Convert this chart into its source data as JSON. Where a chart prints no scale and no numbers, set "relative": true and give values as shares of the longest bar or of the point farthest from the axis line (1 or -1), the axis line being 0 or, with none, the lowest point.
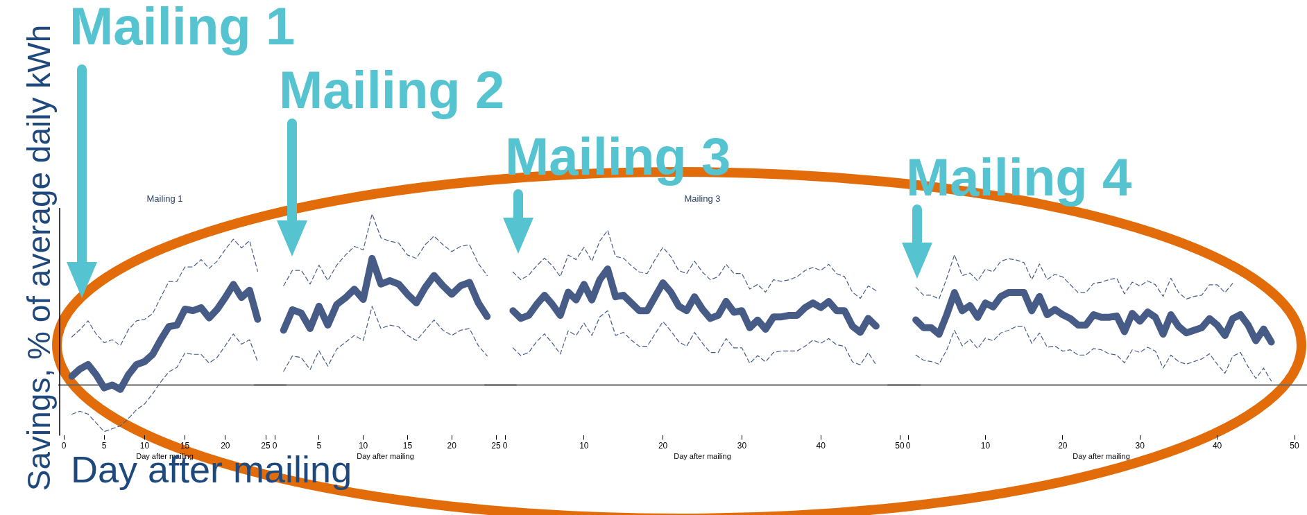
{
  "chart_data": [
    {
      "type": "line",
      "title": "Mailing 1",
      "xlabel": "Day after mailing",
      "ylabel": "Savings, % of average daily kWh",
      "annotations": [
        "Mailing 1",
        "Day after mailing"
      ],
      "relative": true,
      "xlim": [
        0,
        25
      ],
      "xticks": [
        0,
        5,
        10,
        15,
        20,
        25
      ],
      "tick_labels": "x",
      "marker": "none",
      "legend": false,
      "grid": false,
      "x": [
        1,
        2,
        3,
        4,
        5,
        6,
        7,
        8,
        9,
        10,
        11,
        12,
        13,
        14,
        15,
        16,
        17,
        18,
        19,
        20,
        21,
        22,
        23,
        24
      ],
      "series": [
        {
          "color": "#465c87",
          "line_style": "solid",
          "values": [
            0.06,
            0.11,
            0.14,
            0.07,
            -0.02,
            0,
            -0.03,
            0.07,
            0.14,
            0.16,
            0.21,
            0.31,
            0.4,
            0.41,
            0.52,
            0.51,
            0.53,
            0.46,
            0.52,
            0.6,
            0.69,
            0.6,
            0.65,
            0.45
          ]
        },
        {
          "color": "#465c87",
          "line_style": "dashed",
          "values": [
            0.33,
            0.38,
            0.44,
            0.35,
            0.29,
            0.31,
            0.27,
            0.38,
            0.44,
            0.45,
            0.49,
            0.6,
            0.71,
            0.71,
            0.81,
            0.81,
            0.86,
            0.8,
            0.85,
            0.93,
            1,
            0.94,
            0.99,
            0.78
          ]
        },
        {
          "color": "#465c87",
          "line_style": "dashed",
          "values": [
            -0.2,
            -0.18,
            -0.2,
            -0.26,
            -0.32,
            -0.3,
            -0.28,
            -0.23,
            -0.17,
            -0.13,
            -0.06,
            0.02,
            0.09,
            0.12,
            0.22,
            0.21,
            0.21,
            0.15,
            0.19,
            0.27,
            0.35,
            0.28,
            0.31,
            0.16
          ]
        }
      ]
    },
    {
      "type": "line",
      "xlabel": "Day after mailing",
      "annotations": [
        "Mailing 2"
      ],
      "relative": true,
      "xlim": [
        0,
        25
      ],
      "xticks": [
        0,
        5,
        10,
        15,
        20,
        25
      ],
      "tick_labels": "x",
      "marker": "none",
      "legend": false,
      "grid": false,
      "x": [
        1,
        2,
        3,
        4,
        5,
        6,
        7,
        8,
        9,
        10,
        11,
        12,
        13,
        14,
        15,
        16,
        17,
        18,
        19,
        20,
        21,
        22,
        23,
        24
      ],
      "series": [
        {
          "color": "#465c87",
          "line_style": "solid",
          "values": [
            0.32,
            0.44,
            0.42,
            0.33,
            0.46,
            0.35,
            0.47,
            0.51,
            0.56,
            0.5,
            0.74,
            0.59,
            0.61,
            0.59,
            0.53,
            0.48,
            0.57,
            0.64,
            0.58,
            0.53,
            0.58,
            0.6,
            0.48,
            0.4
          ]
        },
        {
          "color": "#465c87",
          "line_style": "dashed",
          "values": [
            0.58,
            0.67,
            0.67,
            0.59,
            0.7,
            0.61,
            0.7,
            0.76,
            0.81,
            0.79,
            1,
            0.86,
            0.84,
            0.83,
            0.76,
            0.74,
            0.82,
            0.87,
            0.82,
            0.78,
            0.81,
            0.82,
            0.71,
            0.64
          ]
        },
        {
          "color": "#465c87",
          "line_style": "dashed",
          "values": [
            0.08,
            0.17,
            0.16,
            0.09,
            0.2,
            0.11,
            0.21,
            0.25,
            0.29,
            0.26,
            0.46,
            0.33,
            0.35,
            0.34,
            0.29,
            0.26,
            0.32,
            0.38,
            0.32,
            0.29,
            0.32,
            0.33,
            0.23,
            0.17
          ]
        }
      ]
    },
    {
      "type": "line",
      "title": "Mailing 3",
      "xlabel": "Day after mailing",
      "annotations": [
        "Mailing 3"
      ],
      "relative": true,
      "xlim": [
        0,
        50
      ],
      "xticks": [
        0,
        10,
        20,
        30,
        40,
        50
      ],
      "tick_labels": "x",
      "marker": "none",
      "legend": false,
      "grid": false,
      "x": [
        1,
        2,
        3,
        4,
        5,
        6,
        7,
        8,
        9,
        10,
        11,
        12,
        13,
        14,
        15,
        16,
        17,
        18,
        19,
        20,
        21,
        22,
        23,
        24,
        25,
        26,
        27,
        28,
        29,
        30,
        31,
        32,
        33,
        34,
        35,
        36,
        37,
        38,
        39,
        40,
        41,
        42,
        43,
        44,
        45,
        46,
        47
      ],
      "series": [
        {
          "color": "#465c87",
          "line_style": "solid",
          "values": [
            0.48,
            0.43,
            0.45,
            0.52,
            0.58,
            0.52,
            0.45,
            0.6,
            0.55,
            0.65,
            0.55,
            0.68,
            0.75,
            0.57,
            0.58,
            0.53,
            0.48,
            0.48,
            0.57,
            0.66,
            0.6,
            0.51,
            0.48,
            0.57,
            0.49,
            0.43,
            0.45,
            0.54,
            0.47,
            0.48,
            0.37,
            0.42,
            0.36,
            0.44,
            0.44,
            0.45,
            0.45,
            0.5,
            0.53,
            0.5,
            0.54,
            0.48,
            0.48,
            0.38,
            0.34,
            0.43,
            0.38
          ]
        },
        {
          "color": "#465c87",
          "line_style": "dashed",
          "values": [
            0.73,
            0.68,
            0.71,
            0.77,
            0.82,
            0.77,
            0.7,
            0.84,
            0.81,
            0.89,
            0.8,
            0.93,
            1,
            0.83,
            0.82,
            0.77,
            0.73,
            0.72,
            0.81,
            0.89,
            0.83,
            0.74,
            0.72,
            0.8,
            0.73,
            0.68,
            0.7,
            0.78,
            0.72,
            0.72,
            0.62,
            0.65,
            0.6,
            0.68,
            0.67,
            0.68,
            0.7,
            0.74,
            0.76,
            0.74,
            0.78,
            0.72,
            0.7,
            0.6,
            0.56,
            0.64,
            0.61
          ]
        },
        {
          "color": "#465c87",
          "line_style": "dashed",
          "values": [
            0.24,
            0.19,
            0.21,
            0.28,
            0.33,
            0.27,
            0.2,
            0.35,
            0.32,
            0.4,
            0.32,
            0.44,
            0.48,
            0.32,
            0.34,
            0.29,
            0.25,
            0.25,
            0.33,
            0.41,
            0.35,
            0.28,
            0.25,
            0.34,
            0.27,
            0.21,
            0.21,
            0.3,
            0.24,
            0.24,
            0.14,
            0.19,
            0.15,
            0.21,
            0.22,
            0.22,
            0.22,
            0.25,
            0.29,
            0.27,
            0.3,
            0.26,
            0.25,
            0.15,
            0.13,
            0.21,
            0.13
          ]
        }
      ]
    },
    {
      "type": "line",
      "xlabel": "Day after mailing",
      "annotations": [
        "Mailing 4"
      ],
      "relative": true,
      "xlim": [
        0,
        50
      ],
      "xticks": [
        0,
        10,
        20,
        30,
        40,
        50
      ],
      "tick_labels": "x",
      "marker": "none",
      "legend": false,
      "grid": false,
      "x": [
        1,
        2,
        3,
        4,
        5,
        6,
        7,
        8,
        9,
        10,
        11,
        12,
        13,
        14,
        15,
        16,
        17,
        18,
        19,
        20,
        21,
        22,
        23,
        24,
        25,
        26,
        27,
        28,
        29,
        30,
        31,
        32,
        33,
        34,
        35,
        36,
        37,
        38,
        39,
        40,
        41,
        42,
        43,
        44,
        45,
        46,
        47
      ],
      "series": [
        {
          "color": "#465c87",
          "line_style": "solid",
          "values": [
            0.5,
            0.44,
            0.44,
            0.39,
            0.54,
            0.71,
            0.57,
            0.61,
            0.52,
            0.63,
            0.6,
            0.68,
            0.71,
            0.71,
            0.71,
            0.57,
            0.68,
            0.54,
            0.58,
            0.54,
            0.51,
            0.46,
            0.46,
            0.54,
            0.52,
            0.52,
            0.53,
            0.41,
            0.55,
            0.49,
            0.56,
            0.52,
            0.39,
            0.54,
            0.45,
            0.4,
            0.42,
            0.44,
            0.51,
            0.46,
            0.38,
            0.51,
            0.54,
            0.46,
            0.34,
            0.43,
            0.33
          ]
        },
        {
          "color": "#465c87",
          "line_style": "dashed",
          "values": [
            0.75,
            0.69,
            0.69,
            0.66,
            0.82,
            1,
            0.84,
            0.86,
            0.8,
            0.89,
            0.87,
            0.95,
            0.97,
            0.96,
            0.94,
            0.81,
            0.93,
            0.81,
            0.85,
            0.83,
            0.77,
            0.71,
            0.71,
            0.78,
            0.79,
            0.81,
            0.82,
            0.7,
            0.79,
            0.76,
            0.8,
            0.77,
            0.68,
            0.82,
            0.71,
            0.66,
            0.68,
            0.69,
            0.77,
            0.77,
            0.71,
            0.78,
            null,
            null,
            null,
            null,
            null
          ]
        },
        {
          "color": "#465c87",
          "line_style": "dashed",
          "values": [
            0.23,
            0.19,
            0.18,
            0.16,
            0.27,
            0.42,
            0.3,
            0.35,
            0.28,
            0.36,
            0.34,
            0.4,
            0.42,
            0.45,
            0.45,
            0.32,
            0.4,
            0.29,
            0.3,
            0.26,
            0.27,
            0.23,
            0.23,
            0.28,
            0.27,
            0.24,
            0.23,
            0.17,
            0.27,
            0.25,
            0.29,
            0.26,
            0.13,
            0.23,
            0.18,
            0.16,
            0.18,
            0.2,
            0.24,
            0.16,
            0.09,
            0.22,
            0.25,
            0.14,
            0.05,
            0.13,
            0.03
          ]
        }
      ]
    }
  ]
}
